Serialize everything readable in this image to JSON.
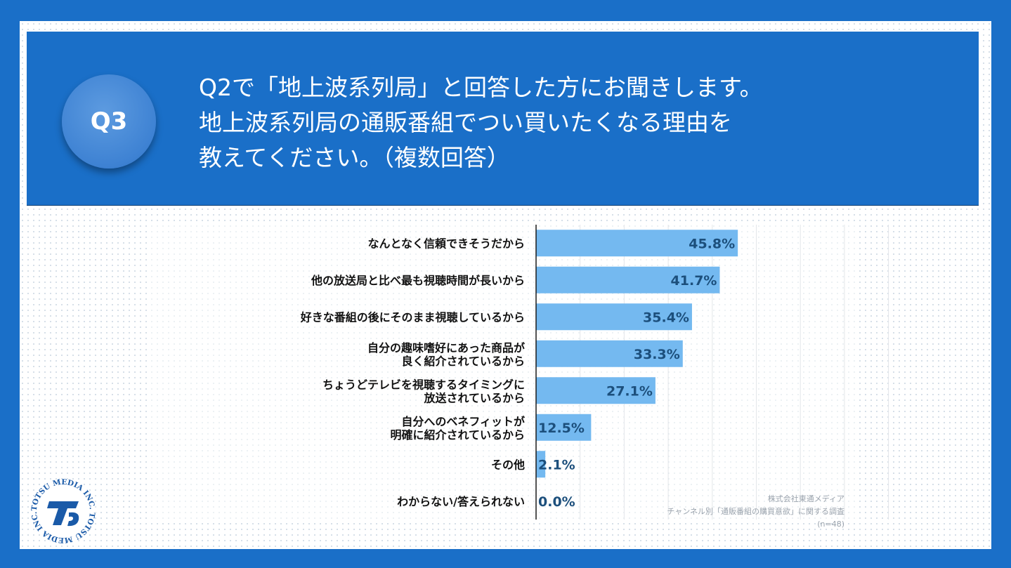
{
  "badge": "Q3",
  "question": {
    "lines": [
      "Q2で「地上波系列局」と回答した方にお聞きします。",
      "地上波系列局の通販番組でつい買いたくなる理由を",
      "教えてください。（複数回答）"
    ]
  },
  "chart_data": {
    "type": "bar",
    "orientation": "horizontal",
    "categories": [
      [
        "なんとなく信頼できそうだから"
      ],
      [
        "他の放送局と比べ最も視聴時間が長いから"
      ],
      [
        "好きな番組の後にそのまま視聴しているから"
      ],
      [
        "自分の趣味嗜好にあった商品が",
        "良く紹介されているから"
      ],
      [
        "ちょうどテレビを視聴するタイミングに",
        "放送されているから"
      ],
      [
        "自分へのベネフィットが",
        "明確に紹介されているから"
      ],
      [
        "その他"
      ],
      [
        "わからない/答えられない"
      ]
    ],
    "values": [
      45.8,
      41.7,
      35.4,
      33.3,
      27.1,
      12.5,
      2.1,
      0.0
    ],
    "value_labels": [
      "45.8%",
      "41.7%",
      "35.4%",
      "33.3%",
      "27.1%",
      "12.5%",
      "2.1%",
      "0.0%"
    ],
    "xlim": [
      0,
      80
    ],
    "grid": true,
    "bar_color": "#74b9f0",
    "label_color": "#1c4f7c"
  },
  "source": {
    "lines": [
      "株式会社東通メディア",
      "チャンネル別「通販番組の購買意欲」に関する調査",
      "(n=48)"
    ]
  },
  "logo": {
    "ring_text": "TOTSU MEDIA INC. TOTSU MEDIA INC.",
    "mark": "TS"
  },
  "colors": {
    "background": "#1a6fc8",
    "header": "#1a6fc8",
    "badge": "#3e82d3"
  }
}
